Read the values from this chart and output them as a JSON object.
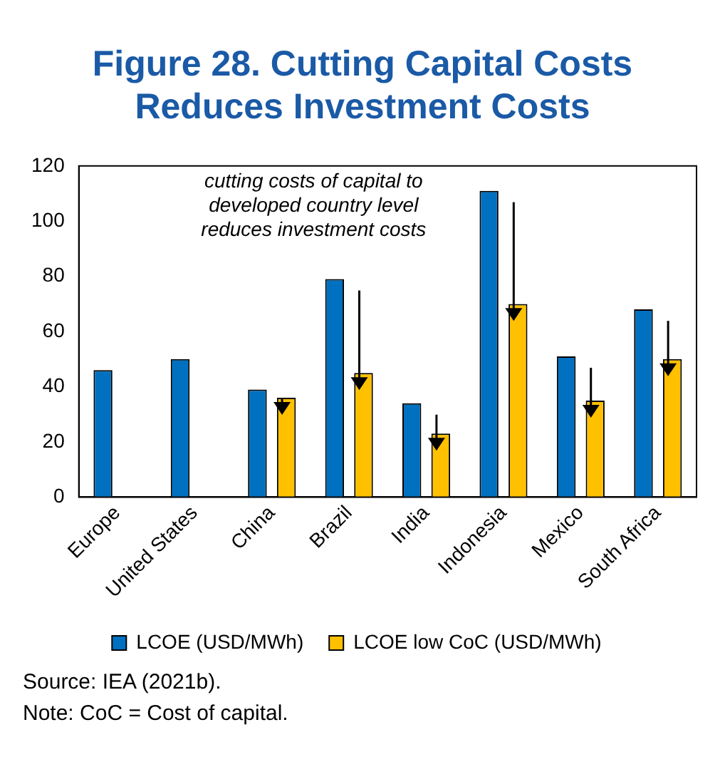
{
  "chart_data": {
    "type": "bar",
    "title": "Figure 28. Cutting Capital Costs Reduces Investment Costs",
    "categories": [
      "Europe",
      "United States",
      "China",
      "Brazil",
      "India",
      "Indonesia",
      "Mexico",
      "South Africa"
    ],
    "series": [
      {
        "name": "LCOE (USD/MWh)",
        "color": "#0070c0",
        "values": [
          46,
          50,
          39,
          79,
          34,
          111,
          51,
          68
        ]
      },
      {
        "name": "LCOE low CoC (USD/MWh)",
        "color": "#ffc000",
        "values": [
          null,
          null,
          36,
          45,
          23,
          70,
          35,
          50
        ]
      }
    ],
    "ylim": [
      0,
      120
    ],
    "yticks": [
      0,
      20,
      40,
      60,
      80,
      100,
      120
    ],
    "grid": false,
    "legend": "bottom",
    "annotations": [
      "cutting costs of capital to developed country level reduces investment costs",
      "Source: IEA (2021b).",
      "Note: CoC = Cost of capital."
    ]
  }
}
